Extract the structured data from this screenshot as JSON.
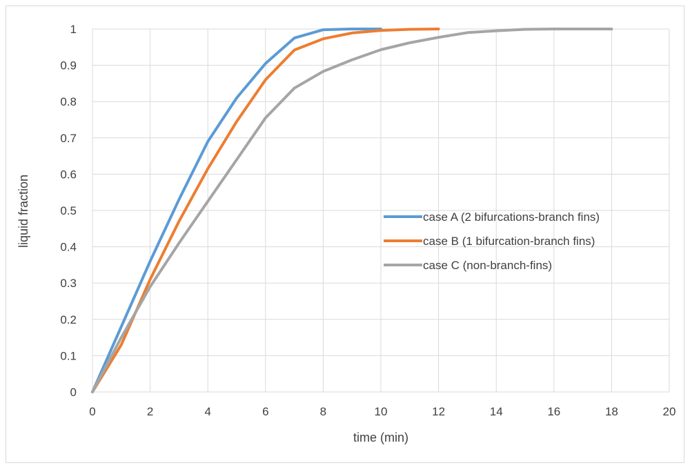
{
  "chart_data": {
    "type": "line",
    "xlabel": "time (min)",
    "ylabel": "liquid fraction",
    "xlim": [
      0,
      20
    ],
    "ylim": [
      0,
      1
    ],
    "x_ticks": [
      "0",
      "2",
      "4",
      "6",
      "8",
      "10",
      "12",
      "14",
      "16",
      "18",
      "20"
    ],
    "y_ticks": [
      "0",
      "0.1",
      "0.2",
      "0.3",
      "0.4",
      "0.5",
      "0.6",
      "0.7",
      "0.8",
      "0.9",
      "1"
    ],
    "grid": true,
    "legend_position": "center-right",
    "series": [
      {
        "name": "case A (2 bifurcations-branch fins)",
        "color": "#5b9bd5",
        "x": [
          0,
          1,
          2,
          3,
          4,
          5,
          6,
          7,
          8,
          9,
          10
        ],
        "y": [
          0,
          0.18,
          0.36,
          0.53,
          0.69,
          0.81,
          0.905,
          0.975,
          0.998,
          1,
          1
        ]
      },
      {
        "name": "case B (1 bifurcation-branch fins)",
        "color": "#ed7d31",
        "x": [
          0,
          1,
          2,
          3,
          4,
          5,
          6,
          7,
          8,
          9,
          10,
          11,
          12
        ],
        "y": [
          0,
          0.13,
          0.31,
          0.47,
          0.615,
          0.745,
          0.86,
          0.942,
          0.973,
          0.989,
          0.996,
          0.999,
          1
        ]
      },
      {
        "name": "case C (non-branch-fins)",
        "color": "#a5a5a5",
        "x": [
          0,
          1,
          2,
          3,
          4,
          5,
          6,
          7,
          8,
          9,
          10,
          11,
          12,
          13,
          14,
          15,
          16,
          17,
          18
        ],
        "y": [
          0,
          0.15,
          0.29,
          0.41,
          0.525,
          0.64,
          0.755,
          0.837,
          0.883,
          0.915,
          0.943,
          0.962,
          0.977,
          0.99,
          0.995,
          0.999,
          1,
          1,
          1
        ]
      }
    ]
  }
}
